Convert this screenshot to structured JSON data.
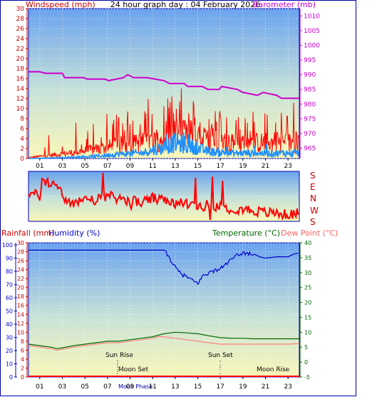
{
  "chart_data": [
    {
      "type": "line",
      "title": "24 hour graph day : 04 February 2026",
      "left_axis_label": "Windspeed (mph)",
      "right_axis_label": "Barometer (mb)",
      "left_ylim": [
        0,
        30
      ],
      "left_ticks": [
        "0",
        "2",
        "4",
        "6",
        "8",
        "10",
        "12",
        "14",
        "16",
        "18",
        "20",
        "22",
        "24",
        "26",
        "28",
        "30"
      ],
      "right_ylim": [
        961.5,
        1012.5
      ],
      "right_ticks": [
        "965",
        "970",
        "975",
        "980",
        "985",
        "990",
        "995",
        "1000",
        "1005",
        "1010"
      ],
      "x_ticks": [
        "01",
        "03",
        "05",
        "07",
        "09",
        "11",
        "13",
        "15",
        "17",
        "19",
        "21",
        "23"
      ],
      "x_range_hours": [
        0,
        24
      ],
      "series": [
        {
          "name": "Barometer",
          "axis": "right",
          "color": "#cc00cc",
          "x": [
            0,
            1,
            1.5,
            3,
            3.2,
            4.9,
            5.2,
            6.8,
            7.1,
            8.4,
            8.8,
            9.3,
            10.5,
            12,
            12.5,
            13.8,
            14.1,
            15.4,
            15.9,
            16.9,
            17.1,
            18.5,
            19,
            20.3,
            20.8,
            22,
            22.4,
            24
          ],
          "y": [
            991,
            991,
            990.5,
            990.5,
            989,
            989,
            988.5,
            988.5,
            988,
            989,
            990,
            989,
            989,
            988,
            987,
            987,
            986,
            986,
            985,
            985,
            986,
            985,
            984,
            983,
            984,
            983,
            982,
            982
          ]
        },
        {
          "name": "Wind gust",
          "axis": "left",
          "color": "#ff0000",
          "profile_x": [
            0,
            3,
            6,
            8,
            10,
            12,
            13,
            14,
            16,
            18,
            20,
            22,
            24
          ],
          "profile_y": [
            0.2,
            1.0,
            2.0,
            3.0,
            3.5,
            4.5,
            5.5,
            5.0,
            4.0,
            3.5,
            3.5,
            3.5,
            3.5
          ]
        },
        {
          "name": "Wind speed",
          "axis": "left",
          "color": "#1e90ff",
          "profile_x": [
            0,
            3,
            6,
            8,
            10,
            12,
            13,
            14,
            16,
            18,
            20,
            22,
            24
          ],
          "profile_y": [
            0,
            0.2,
            0.5,
            1.0,
            1.2,
            2.5,
            3.5,
            3.0,
            1.5,
            1.2,
            1.2,
            1.2,
            1.2
          ]
        }
      ]
    },
    {
      "type": "line",
      "title": "",
      "axis_labels": [
        "S",
        "E",
        "N",
        "W",
        "S"
      ],
      "series": [
        {
          "name": "Wind direction",
          "color": "#ff0000",
          "x": [
            0,
            1,
            1.2,
            2.5,
            3,
            3.1,
            4,
            5,
            6,
            7,
            8,
            9,
            10,
            11,
            12,
            13,
            14,
            15,
            16,
            17,
            18,
            19,
            20,
            21,
            22,
            23,
            24
          ],
          "y": [
            230,
            220,
            255,
            250,
            225,
            205,
            205,
            215,
            210,
            220,
            215,
            210,
            205,
            215,
            210,
            200,
            205,
            195,
            200,
            195,
            190,
            190,
            185,
            180,
            180,
            175,
            180
          ]
        }
      ]
    },
    {
      "type": "line",
      "title": "",
      "left_axis_labels": [
        "Rainfall (mm)",
        "Humidity (%)"
      ],
      "right_axis_labels": [
        "Temperature (°C)",
        "Dew Point (°C)"
      ],
      "rain_ticks": [
        "0",
        "2",
        "4",
        "6",
        "8",
        "10",
        "12",
        "14",
        "16",
        "18",
        "20",
        "22",
        "24",
        "26",
        "28",
        "30"
      ],
      "humidity_ticks": [
        "0",
        "10",
        "20",
        "30",
        "40",
        "50",
        "60",
        "70",
        "80",
        "90",
        "100"
      ],
      "temp_ticks": [
        "-5",
        "0",
        "5",
        "10",
        "15",
        "20",
        "25",
        "30",
        "35",
        "40"
      ],
      "x_ticks": [
        "01",
        "03",
        "05",
        "07",
        "09",
        "11",
        "13",
        "15",
        "17",
        "19",
        "21",
        "23"
      ],
      "annotations": [
        "Sun Rise",
        "Sun Set",
        "Moon Set",
        "Moon Rise",
        "Moon Phase"
      ],
      "series": [
        {
          "name": "Humidity",
          "axis": "humidity",
          "color": "#0000cc",
          "x": [
            0,
            11.5,
            12,
            12.5,
            13,
            13.5,
            14,
            14.5,
            15,
            15.5,
            16,
            17,
            18,
            18.5,
            19,
            20,
            20.5,
            21,
            22,
            23,
            23.5,
            24
          ],
          "y": [
            96,
            96,
            96,
            90,
            83,
            78,
            76,
            73,
            71,
            77,
            79,
            82,
            89,
            92,
            94,
            93,
            91,
            90,
            91,
            91,
            93,
            94
          ]
        },
        {
          "name": "Temperature",
          "axis": "temp",
          "color": "#006600",
          "x": [
            0,
            1,
            2,
            2.5,
            3,
            4,
            5,
            6,
            7,
            8,
            9,
            10,
            11,
            12,
            13,
            14,
            15,
            16,
            17,
            18,
            19,
            20,
            21,
            22,
            23,
            24
          ],
          "y": [
            6,
            5.5,
            5,
            4.5,
            4.8,
            5.5,
            6,
            6.5,
            7,
            7,
            7.5,
            8,
            8.5,
            9.5,
            10,
            9.8,
            9.5,
            8.8,
            8.2,
            8,
            8,
            7.8,
            7.8,
            7.8,
            7.8,
            7.8
          ]
        },
        {
          "name": "Dew Point",
          "axis": "temp",
          "color": "#ff8080",
          "x": [
            0,
            1,
            2,
            2.5,
            3,
            4,
            5,
            6,
            7,
            8,
            9,
            10,
            11,
            11.5,
            12,
            13,
            14,
            15,
            16,
            17,
            18,
            19,
            20,
            21,
            22,
            23,
            24
          ],
          "y": [
            5.5,
            5,
            4.5,
            4,
            4.3,
            5,
            5.5,
            6,
            6.5,
            6.5,
            7,
            7.5,
            8,
            8.5,
            8.5,
            8,
            7.5,
            7,
            6.5,
            6,
            6,
            6,
            6,
            6,
            6,
            6,
            6.2
          ]
        },
        {
          "name": "Rainfall",
          "axis": "rain",
          "color": "#ff0000",
          "x": [
            0,
            24
          ],
          "y": [
            0,
            0
          ]
        }
      ]
    }
  ],
  "colors": {
    "panel_border": "#0000aa",
    "grid": "#ffffff",
    "tick": "#000000",
    "bg_top": "#6aa3ef",
    "bg_bottom": "#f9f7b8"
  },
  "markers": {
    "sun_rise_hour": 7.5,
    "sun_set_hour": 17.1,
    "moon_set_hour": 7.6,
    "moon_rise_hour": 22.2
  }
}
